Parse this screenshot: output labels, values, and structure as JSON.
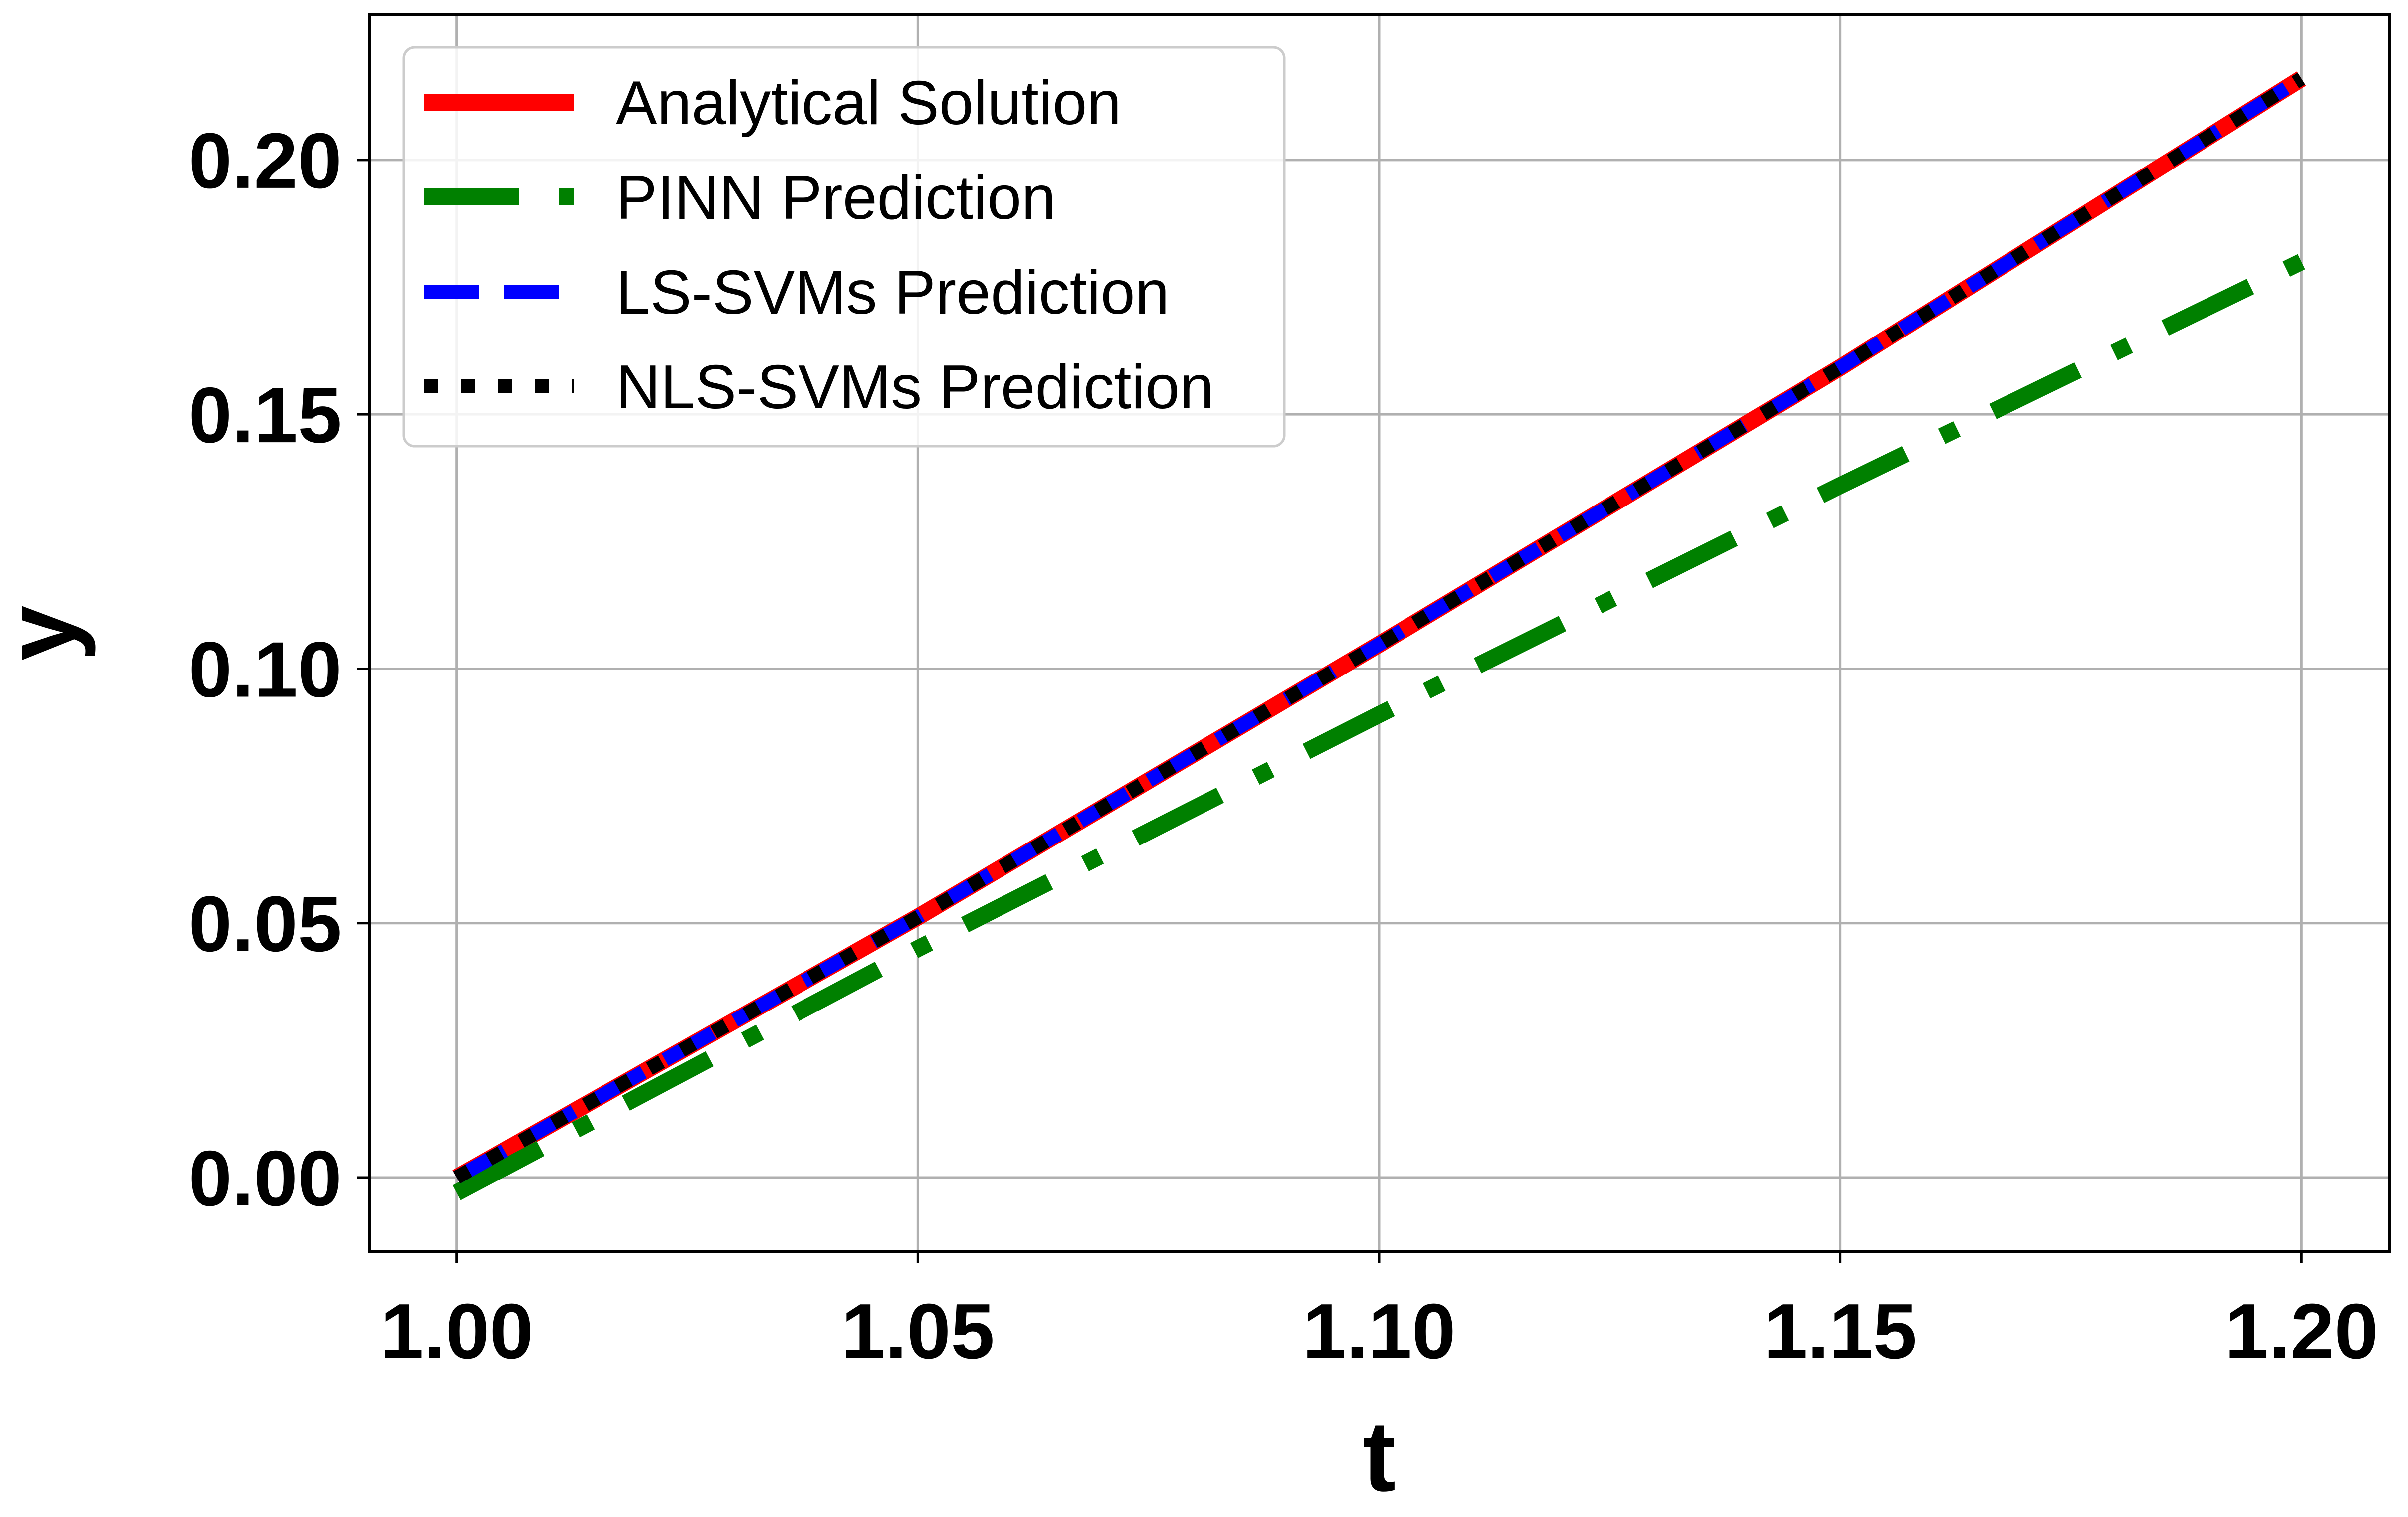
{
  "chart_data": {
    "type": "line",
    "title": "",
    "xlabel": "t",
    "ylabel": "y",
    "xlim": [
      0.9905,
      1.2095
    ],
    "ylim": [
      -0.0145,
      0.2285
    ],
    "xticks": [
      1.0,
      1.05,
      1.1,
      1.15,
      1.2
    ],
    "xtick_labels": [
      "1.00",
      "1.05",
      "1.10",
      "1.15",
      "1.20"
    ],
    "yticks": [
      0.0,
      0.05,
      0.1,
      0.15,
      0.2
    ],
    "ytick_labels": [
      "0.00",
      "0.05",
      "0.10",
      "0.15",
      "0.20"
    ],
    "grid": true,
    "legend_position": "top-left",
    "x": [
      1.0,
      1.05,
      1.1,
      1.15,
      1.2
    ],
    "series": [
      {
        "name": "Analytical Solution",
        "color": "#ff0000",
        "style": "solid",
        "values": [
          0.0,
          0.0512,
          0.1048,
          0.1592,
          0.216
        ]
      },
      {
        "name": "PINN Prediction",
        "color": "#008000",
        "style": "dashdot",
        "values": [
          -0.003,
          0.045,
          0.091,
          0.136,
          0.18
        ]
      },
      {
        "name": "LS-SVMs Prediction",
        "color": "#0000ff",
        "style": "dashed",
        "values": [
          0.0,
          0.0512,
          0.1048,
          0.1592,
          0.216
        ]
      },
      {
        "name": "NLS-SVMs Prediction",
        "color": "#000000",
        "style": "dotted",
        "values": [
          0.0,
          0.0512,
          0.1048,
          0.1592,
          0.216
        ]
      }
    ]
  }
}
